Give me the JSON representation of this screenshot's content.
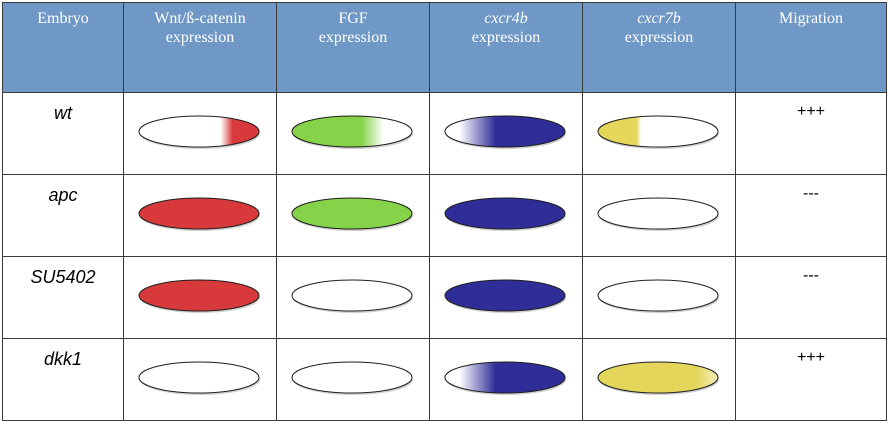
{
  "headers": [
    {
      "line1": "Embryo",
      "line2": "",
      "italic": false
    },
    {
      "line1": "Wnt/ß-catenin",
      "line2": "expression",
      "italic": false
    },
    {
      "line1": "FGF",
      "line2": "expression",
      "italic": false
    },
    {
      "line1": "cxcr4b",
      "line2": "expression",
      "italic": true
    },
    {
      "line1": "cxcr7b",
      "line2": "expression",
      "italic": true
    },
    {
      "line1": "Migration",
      "line2": "",
      "italic": false
    }
  ],
  "rows": [
    {
      "embryo": "wt",
      "wnt": "red-right",
      "fgf": "green-left",
      "cxcr4b": "blue-gradient",
      "cxcr7b": "yellow-left",
      "migration": "+++"
    },
    {
      "embryo": "apc",
      "wnt": "red-full",
      "fgf": "green-full",
      "cxcr4b": "blue-full",
      "cxcr7b": "empty",
      "migration": "---"
    },
    {
      "embryo": "SU5402",
      "wnt": "red-full",
      "fgf": "empty",
      "cxcr4b": "blue-full",
      "cxcr7b": "empty",
      "migration": "---"
    },
    {
      "embryo": "dkk1",
      "wnt": "empty",
      "fgf": "empty",
      "cxcr4b": "blue-gradient",
      "cxcr7b": "yellow-full",
      "migration": "+++"
    }
  ],
  "colors": {
    "header_bg": "#6f98c6",
    "red": "#d8393b",
    "green": "#86d34a",
    "blue": "#2f2e99",
    "yellow": "#e3d65b"
  }
}
